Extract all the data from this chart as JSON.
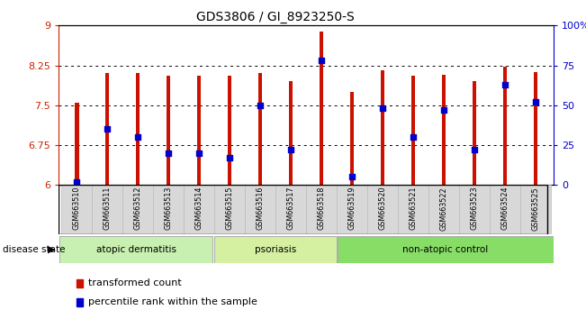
{
  "title": "GDS3806 / GI_8923250-S",
  "samples": [
    "GSM663510",
    "GSM663511",
    "GSM663512",
    "GSM663513",
    "GSM663514",
    "GSM663515",
    "GSM663516",
    "GSM663517",
    "GSM663518",
    "GSM663519",
    "GSM663520",
    "GSM663521",
    "GSM663522",
    "GSM663523",
    "GSM663524",
    "GSM663525"
  ],
  "bar_values": [
    7.55,
    8.1,
    8.1,
    8.05,
    8.05,
    8.05,
    8.1,
    7.95,
    8.88,
    7.75,
    8.15,
    8.05,
    8.08,
    7.95,
    8.22,
    8.12
  ],
  "percentile_values": [
    2,
    35,
    30,
    20,
    20,
    17,
    50,
    22,
    78,
    5,
    48,
    30,
    47,
    22,
    63,
    52
  ],
  "groups": [
    {
      "label": "atopic dermatitis",
      "start": 0,
      "end": 5,
      "color": "#c8f0b0"
    },
    {
      "label": "psoriasis",
      "start": 5,
      "end": 9,
      "color": "#d4f0a0"
    },
    {
      "label": "non-atopic control",
      "start": 9,
      "end": 16,
      "color": "#88dd66"
    }
  ],
  "ymin": 6,
  "ymax": 9,
  "yticks_left": [
    6,
    6.75,
    7.5,
    8.25,
    9
  ],
  "yticks_right_pct": [
    0,
    25,
    50,
    75,
    100
  ],
  "ytick_labels_right": [
    "0",
    "25",
    "50",
    "75",
    "100%"
  ],
  "bar_color": "#cc1100",
  "dot_color": "#0000cc",
  "bar_width": 0.12,
  "left_tick_color": "#cc2200",
  "right_tick_color": "#0000cc",
  "disease_label": "disease state",
  "legend_bar_label": "transformed count",
  "legend_dot_label": "percentile rank within the sample",
  "xlabel_bg": "#d8d8d8",
  "xlabel_border": "#bbbbbb",
  "group_border": "#aaaaaa"
}
